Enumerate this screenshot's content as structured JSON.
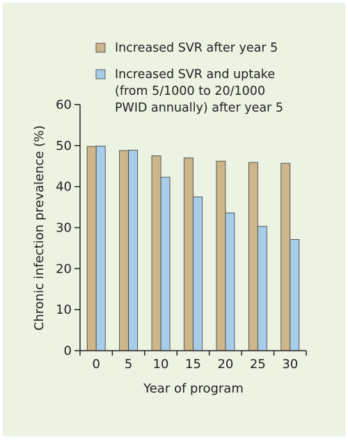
{
  "colors": {
    "panel_bg": "#ecf3e3",
    "series1": "#cdb68b",
    "series2": "#a8cde8",
    "edge": "#3a3a3a",
    "axis": "#231f20"
  },
  "chart_data": {
    "type": "bar",
    "title": "",
    "xlabel": "Year of program",
    "ylabel": "Chronic infection prevalence (%)",
    "categories": [
      "0",
      "5",
      "10",
      "15",
      "20",
      "25",
      "30"
    ],
    "ylim": [
      0,
      60
    ],
    "yticks": [
      "0",
      "10",
      "20",
      "30",
      "40",
      "50",
      "60"
    ],
    "grid": false,
    "legend_position": "top",
    "series": [
      {
        "name_lines": [
          "Increased SVR after year 5"
        ],
        "color": "#cdb68b",
        "values": [
          49.8,
          48.8,
          47.5,
          47.0,
          46.2,
          45.9,
          45.7
        ]
      },
      {
        "name_lines": [
          "Increased SVR and uptake",
          "(from 5/1000 to 20/1000",
          "PWID annually) after year 5"
        ],
        "color": "#a8cde8",
        "values": [
          49.9,
          48.9,
          42.3,
          37.5,
          33.6,
          30.3,
          27.1
        ]
      }
    ]
  }
}
